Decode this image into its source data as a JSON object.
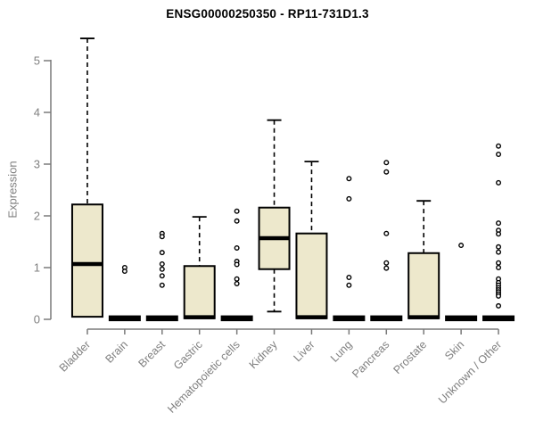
{
  "title": "ENSG00000250350 - RP11-731D1.3",
  "chart_data": {
    "type": "boxplot",
    "title": "ENSG00000250350 - RP11-731D1.3",
    "xlabel": "",
    "ylabel": "Expression",
    "ylim": [
      0,
      5.6
    ],
    "yticks": [
      0,
      1,
      2,
      3,
      4,
      5
    ],
    "grid": false,
    "legend": "none",
    "categories": [
      "Bladder",
      "Brain",
      "Breast",
      "Gastric",
      "Hematopoietic cells",
      "Kidney",
      "Liver",
      "Lung",
      "Pancreas",
      "Prostate",
      "Skin",
      "Unknown / Other"
    ],
    "series": [
      {
        "name": "Bladder",
        "low": 0.05,
        "q1": 0.05,
        "median": 1.07,
        "q3": 2.22,
        "high": 5.43,
        "outliers": []
      },
      {
        "name": "Brain",
        "low": 0,
        "q1": 0,
        "median": 0.02,
        "q3": 0,
        "high": 0,
        "collapsed": true,
        "outliers": [
          1.0,
          0.93
        ]
      },
      {
        "name": "Breast",
        "low": 0,
        "q1": 0,
        "median": 0.02,
        "q3": 0,
        "high": 0,
        "collapsed": true,
        "outliers": [
          1.66,
          1.6,
          1.29,
          1.07,
          0.97,
          0.84,
          0.66
        ]
      },
      {
        "name": "Gastric",
        "low": 0.02,
        "q1": 0.02,
        "median": 0.04,
        "q3": 1.03,
        "high": 1.98,
        "outliers": []
      },
      {
        "name": "Hematopoietic cells",
        "low": 0,
        "q1": 0,
        "median": 0.02,
        "q3": 0,
        "high": 0,
        "collapsed": true,
        "outliers": [
          2.09,
          1.9,
          1.38,
          1.12,
          1.06,
          0.78,
          0.69
        ]
      },
      {
        "name": "Kidney",
        "low": 0.15,
        "q1": 0.97,
        "median": 1.57,
        "q3": 2.16,
        "high": 3.85,
        "outliers": []
      },
      {
        "name": "Liver",
        "low": 0.02,
        "q1": 0.02,
        "median": 0.04,
        "q3": 1.66,
        "high": 3.05,
        "outliers": []
      },
      {
        "name": "Lung",
        "low": 0,
        "q1": 0,
        "median": 0.02,
        "q3": 0,
        "high": 0,
        "collapsed": true,
        "outliers": [
          2.72,
          2.33,
          0.81,
          0.66
        ]
      },
      {
        "name": "Pancreas",
        "low": 0,
        "q1": 0,
        "median": 0.02,
        "q3": 0,
        "high": 0,
        "collapsed": true,
        "outliers": [
          3.03,
          2.85,
          1.66,
          1.09,
          0.99
        ]
      },
      {
        "name": "Prostate",
        "low": 0.02,
        "q1": 0.02,
        "median": 0.04,
        "q3": 1.28,
        "high": 2.29,
        "outliers": []
      },
      {
        "name": "Skin",
        "low": 0,
        "q1": 0,
        "median": 0.02,
        "q3": 0,
        "high": 0,
        "collapsed": true,
        "outliers": [
          1.43
        ]
      },
      {
        "name": "Unknown / Other",
        "low": 0,
        "q1": 0,
        "median": 0.02,
        "q3": 0,
        "high": 0,
        "collapsed": true,
        "outliers": [
          3.35,
          3.19,
          2.64,
          1.86,
          1.72,
          1.65,
          1.4,
          1.3,
          1.09,
          1.0,
          0.78,
          0.71,
          0.66,
          0.61,
          0.57,
          0.53,
          0.49,
          0.45,
          0.26
        ]
      }
    ],
    "colors": {
      "box_fill": "#ede8cc",
      "box_stroke": "#000000",
      "median": "#000000",
      "whisker": "#000000",
      "outlier_stroke": "#000000",
      "axis": "#7a7a7a",
      "tick_label": "#7f7f7f",
      "title": "#000000",
      "background": "#ffffff"
    }
  }
}
